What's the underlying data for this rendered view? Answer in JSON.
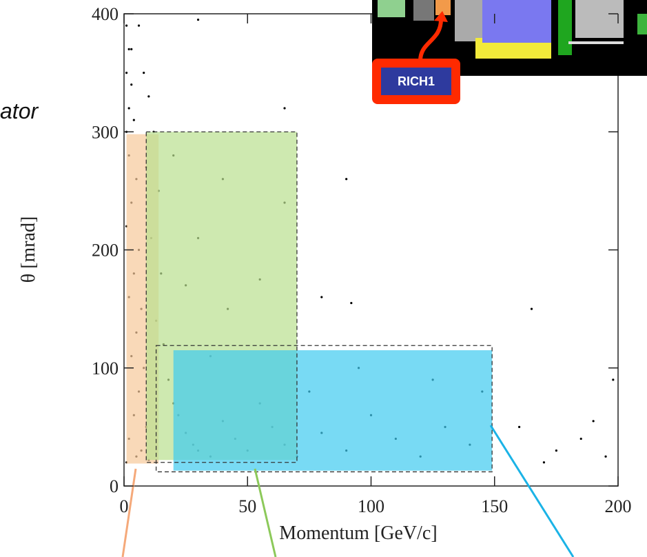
{
  "chart_data": {
    "type": "scatter",
    "side_text": "ator",
    "inset_label": "RICH1",
    "xlabel": "Momentum [GeV/c]",
    "ylabel": "θ [mrad]",
    "xlim": [
      0,
      200
    ],
    "ylim": [
      0,
      400
    ],
    "xticks": [
      0,
      50,
      100,
      150,
      200
    ],
    "yticks": [
      0,
      100,
      200,
      300,
      400
    ],
    "color": "#000000",
    "regions": [
      {
        "xlim": [
          1,
          14
        ],
        "ylim": [
          19,
          298
        ],
        "color": "#f7c99a"
      },
      {
        "xlim": [
          9,
          70
        ],
        "ylim": [
          22,
          300
        ],
        "color": "#b9df8f"
      },
      {
        "xlim": [
          20,
          149
        ],
        "ylim": [
          13,
          115
        ],
        "color": "#3fcaf0"
      }
    ],
    "outlines": [
      {
        "xlim": [
          9,
          70
        ],
        "ylim": [
          20,
          300
        ]
      },
      {
        "xlim": [
          13,
          149
        ],
        "ylim": [
          12,
          119
        ]
      }
    ],
    "x": [
      1,
      2,
      1,
      3,
      2,
      1,
      4,
      2,
      5,
      3,
      1,
      6,
      4,
      2,
      7,
      5,
      3,
      8,
      6,
      4,
      9,
      2,
      7,
      5,
      10,
      1,
      3,
      6,
      8,
      10,
      12,
      9,
      14,
      11,
      15,
      13,
      16,
      18,
      20,
      22,
      25,
      28,
      30,
      35,
      40,
      45,
      50,
      55,
      60,
      65,
      70,
      80,
      90,
      100,
      110,
      120,
      130,
      140,
      145,
      125,
      95,
      75,
      35,
      42,
      25,
      30,
      55,
      65,
      40,
      20,
      80,
      92,
      165,
      175,
      185,
      195,
      190,
      198,
      160,
      170,
      30,
      65,
      90
    ],
    "y": [
      390,
      370,
      350,
      340,
      320,
      300,
      310,
      280,
      260,
      240,
      220,
      200,
      180,
      160,
      150,
      130,
      110,
      100,
      80,
      60,
      50,
      40,
      30,
      25,
      22,
      20,
      370,
      390,
      350,
      330,
      300,
      270,
      250,
      210,
      180,
      140,
      120,
      90,
      70,
      60,
      45,
      35,
      30,
      25,
      55,
      40,
      30,
      70,
      50,
      35,
      25,
      45,
      30,
      60,
      40,
      25,
      50,
      35,
      80,
      90,
      100,
      80,
      110,
      150,
      170,
      210,
      175,
      240,
      260,
      280,
      160,
      155,
      150,
      30,
      40,
      25,
      55,
      90,
      50,
      20,
      395,
      320,
      260
    ]
  }
}
